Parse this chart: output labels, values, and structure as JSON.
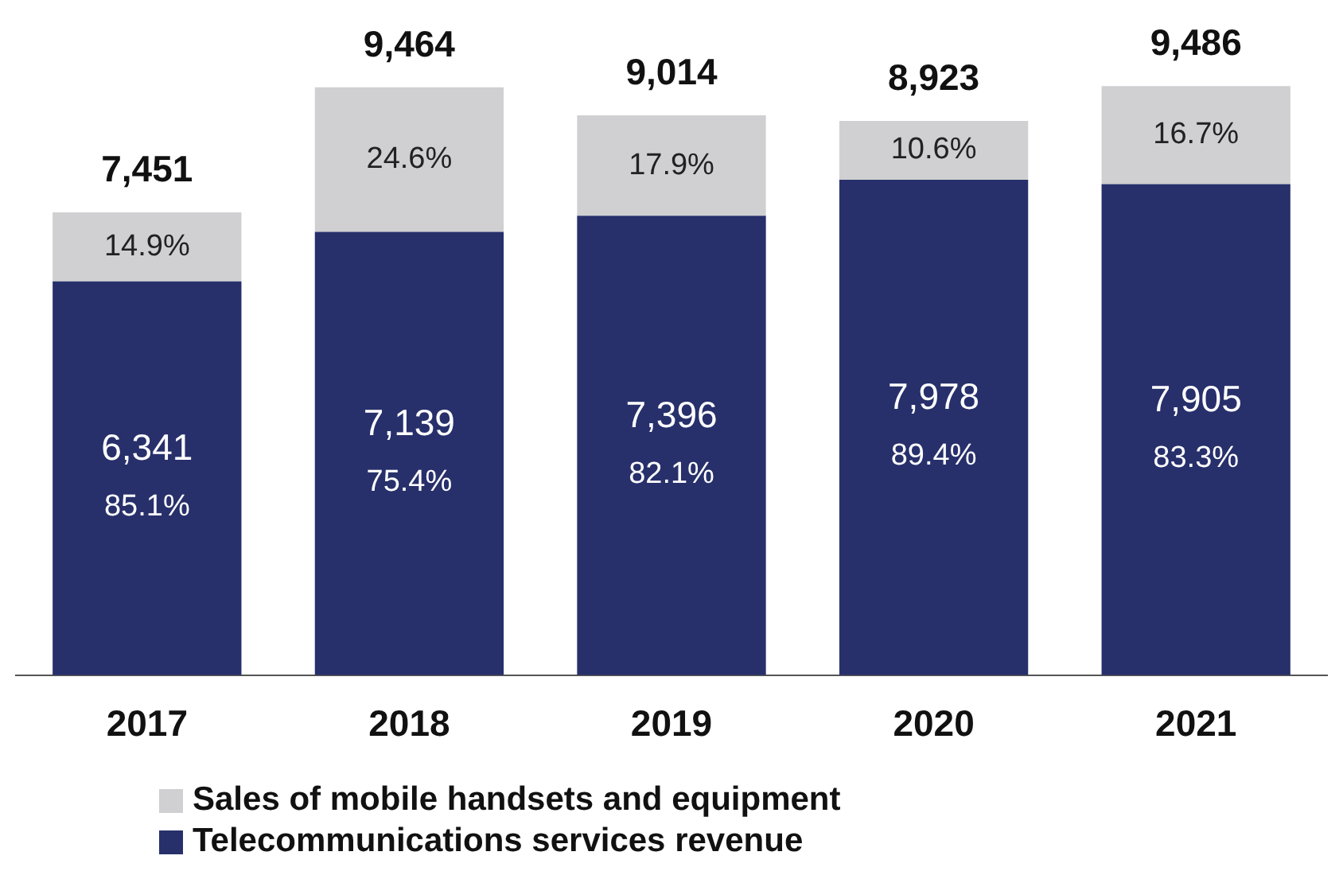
{
  "chart_data": {
    "type": "bar",
    "stacked": true,
    "categories": [
      "2017",
      "2018",
      "2019",
      "2020",
      "2021"
    ],
    "series": [
      {
        "name": "Telecommunications services revenue",
        "color": "#27306b",
        "values": [
          6341,
          7139,
          7396,
          7978,
          7905
        ],
        "value_labels": [
          "6,341\n85.1%",
          "7,139\n75.4%",
          "7,396\n82.1%",
          "7,978\n89.4%",
          "7,905\n83.3%"
        ]
      },
      {
        "name": "Sales of mobile handsets and equipment",
        "color": "#d0cfd1",
        "values": [
          1110,
          2325,
          1618,
          945,
          1581
        ]
      }
    ],
    "totals": [
      "7,451",
      "9,464",
      "9,014",
      "8,923",
      "9,486"
    ],
    "annotations": [
      "14.9%",
      "24.6%",
      "17.9%",
      "10.6%",
      "16.7%"
    ],
    "legend": "bottom",
    "grid": false
  }
}
